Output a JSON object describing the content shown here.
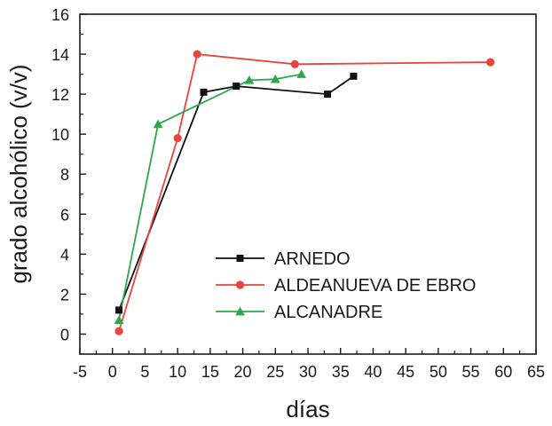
{
  "chart_data": {
    "type": "line",
    "xlabel": "días",
    "ylabel": "grado alcohólico (v/v)",
    "xlim": [
      -5,
      65
    ],
    "ylim": [
      -1,
      16
    ],
    "xticks": [
      -5,
      0,
      5,
      10,
      15,
      20,
      25,
      30,
      35,
      40,
      45,
      50,
      55,
      60,
      65
    ],
    "yticks": [
      0,
      2,
      4,
      6,
      8,
      10,
      12,
      14,
      16
    ],
    "grid": false,
    "legend_position": "center-right",
    "series": [
      {
        "name": "ARNEDO",
        "color": "#111111",
        "marker": "square",
        "x": [
          1,
          14,
          19,
          33,
          37
        ],
        "y": [
          1.2,
          12.1,
          12.4,
          12.0,
          12.9
        ]
      },
      {
        "name": "ALDEANUEVA DE EBRO",
        "color": "#e8453c",
        "marker": "circle",
        "x": [
          1,
          10,
          13,
          28,
          58
        ],
        "y": [
          0.15,
          9.8,
          14.0,
          13.5,
          13.6
        ]
      },
      {
        "name": "ALCANADRE",
        "color": "#2ca84a",
        "marker": "triangle",
        "x": [
          1,
          7,
          21,
          25,
          29
        ],
        "y": [
          0.7,
          10.5,
          12.7,
          12.75,
          13.0
        ]
      }
    ]
  }
}
